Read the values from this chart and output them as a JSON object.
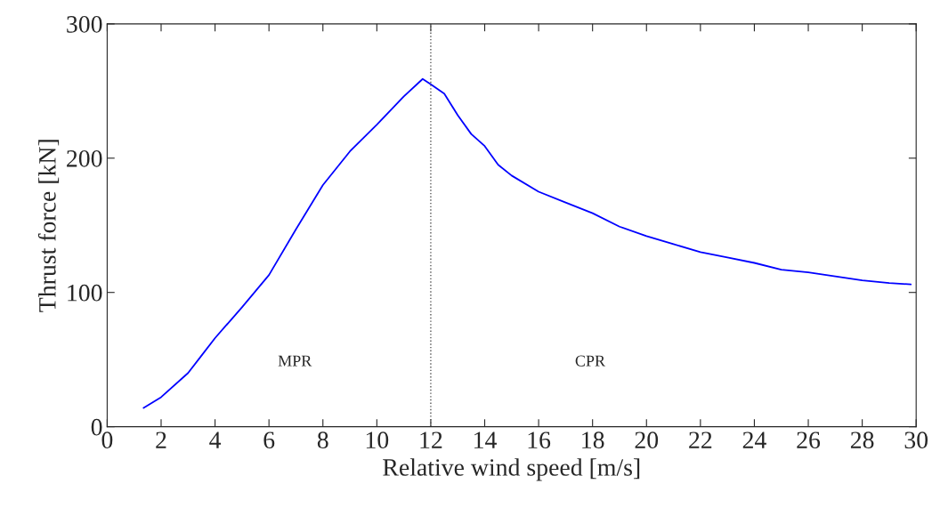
{
  "chart_data": {
    "type": "line",
    "xlabel": "Relative wind speed [m/s]",
    "ylabel": "Thrust force [kN]",
    "xlim": [
      0,
      30
    ],
    "xticks": [
      0,
      2,
      4,
      6,
      8,
      10,
      12,
      14,
      16,
      18,
      20,
      22,
      24,
      26,
      28,
      30
    ],
    "ylim": [
      0,
      300
    ],
    "yticks": [
      0,
      100,
      200,
      300
    ],
    "grid": false,
    "legend": false,
    "marker": "none",
    "line_style": "solid",
    "series": [
      {
        "color": "#0000ff",
        "x": [
          1.35,
          2,
          3,
          3.5,
          4,
          5,
          6,
          7,
          8,
          9,
          10,
          11,
          11.7,
          12,
          12.5,
          13,
          13.5,
          14,
          14.5,
          15,
          16,
          17,
          18,
          19,
          20,
          21,
          22,
          23,
          24,
          25,
          26,
          27,
          28,
          29,
          29.8
        ],
        "values": [
          14,
          22,
          40,
          53,
          66,
          89,
          113,
          147,
          180,
          205,
          225,
          246,
          259,
          255,
          248,
          232,
          218,
          209,
          195,
          187,
          175,
          167,
          159,
          149,
          142,
          136,
          130,
          126,
          122,
          117,
          115,
          112,
          109,
          107,
          106
        ]
      }
    ],
    "ref_lines": [
      {
        "axis": "x",
        "value": 12,
        "color": "#555555",
        "line_style": "dotted"
      }
    ],
    "annotations": [
      "MPR",
      "CPR"
    ]
  }
}
